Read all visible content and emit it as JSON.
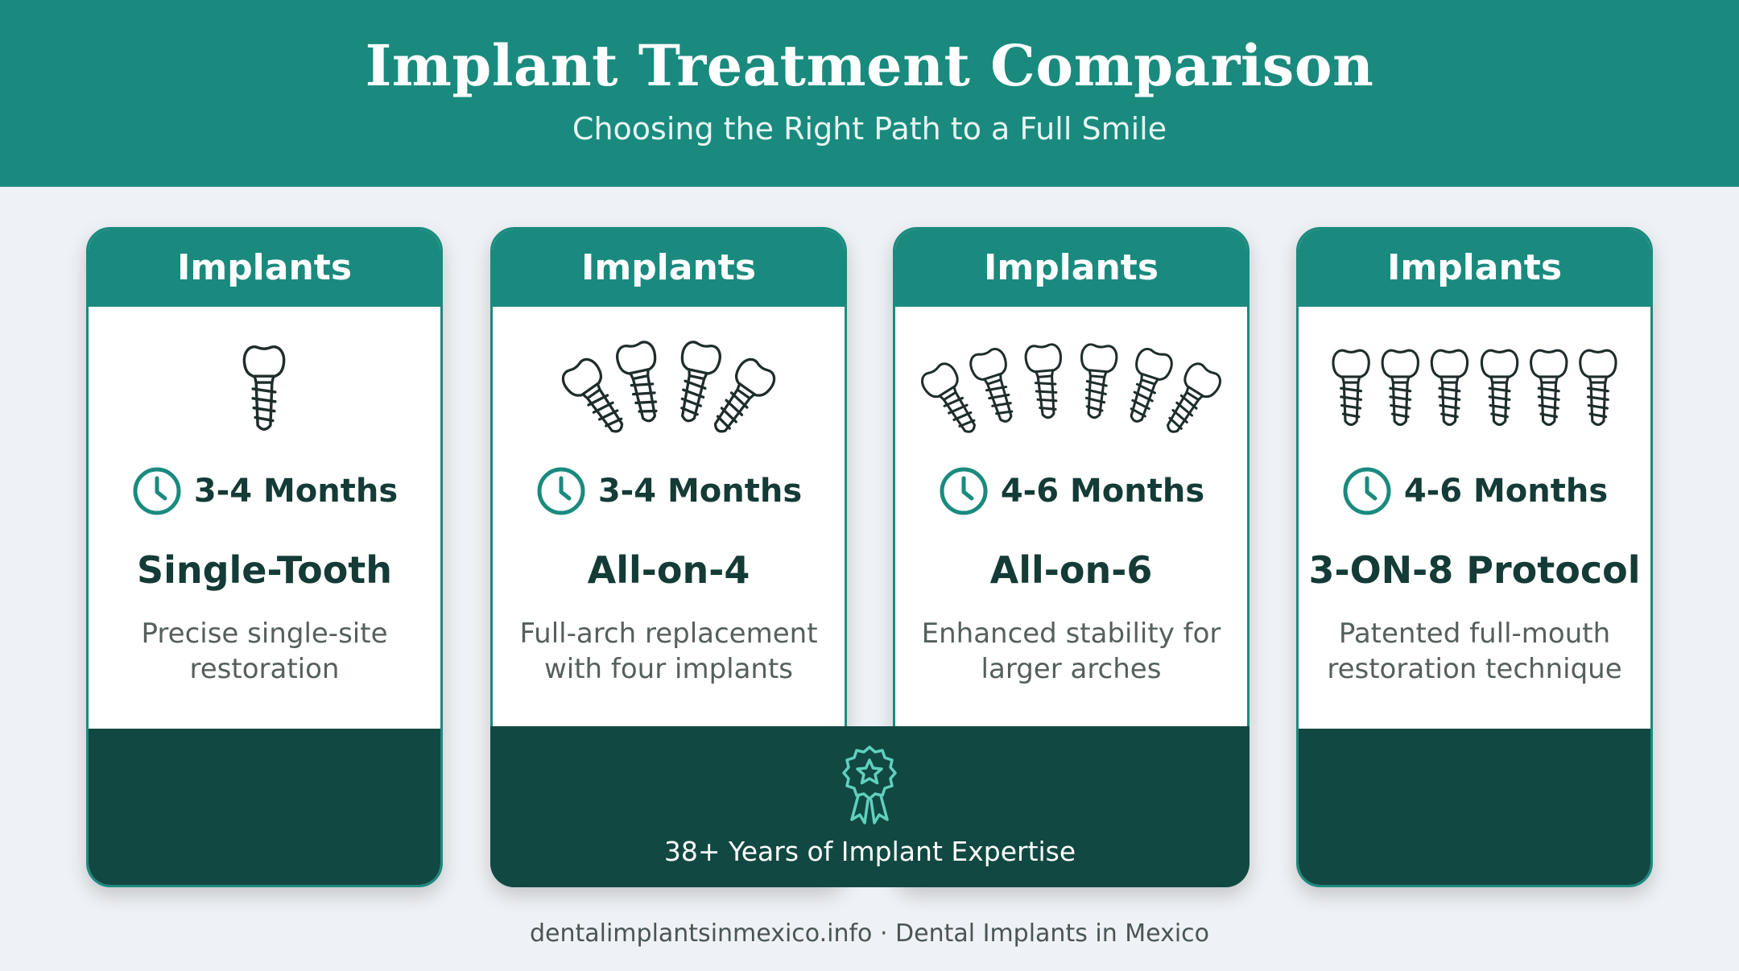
{
  "header": {
    "title": "Implant Treatment Comparison",
    "subtitle": "Choosing the Right Path to a Full Smile"
  },
  "cards": [
    {
      "header_label": "Implants",
      "duration": "3-4 Months",
      "name": "Single-Tooth",
      "description": "Precise single-site restoration",
      "icon": "single-implant-icon"
    },
    {
      "header_label": "Implants",
      "duration": "3-4 Months",
      "name": "All-on-4",
      "description": "Full-arch replacement with four implants",
      "icon": "four-implants-icon"
    },
    {
      "header_label": "Implants",
      "duration": "4-6 Months",
      "name": "All-on-6",
      "description": "Enhanced stability for larger arches",
      "icon": "six-implants-arc-icon"
    },
    {
      "header_label": "Implants",
      "duration": "4-6 Months",
      "name": "3-ON-8 Protocol",
      "description": "Patented full-mouth restoration technique",
      "icon": "six-implants-row-icon"
    }
  ],
  "banner": {
    "text": "38+ Years of Implant Expertise",
    "icon": "award-badge-icon"
  },
  "footer": {
    "text": "dentalimplantsinmexico.info · Dental Implants in Mexico"
  },
  "colors": {
    "header_bg": "#1a8a7e",
    "card_head_bg": "#1a8a7e",
    "card_foot_bg": "#124842",
    "page_bg": "#eef1f5",
    "heading_text": "#143b36",
    "accent": "#1a8a7e"
  }
}
